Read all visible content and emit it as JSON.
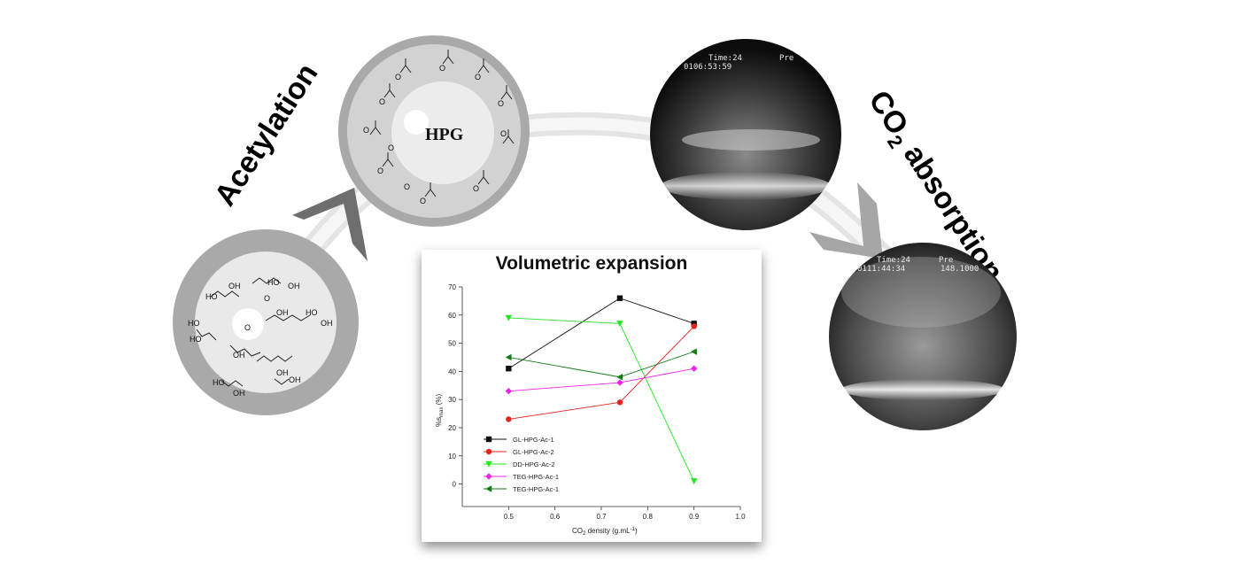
{
  "labels": {
    "acetylation": "Acetylation",
    "co2_absorption_prefix": "CO",
    "co2_absorption_sub": "2",
    "co2_absorption_suffix": " absorption",
    "hpg": "HPG"
  },
  "camera1": {
    "line1": "Time:24",
    "line2": "0106:53:59",
    "line3": "Pre"
  },
  "camera2": {
    "line1": "Time:24",
    "line2": "0111:44:34",
    "line3": "Pre",
    "line4": "148.1000"
  },
  "molecule_groups": [
    "OH",
    "HO",
    "O"
  ],
  "colors": {
    "arrow": "#6e6e6e",
    "ring": "#a9a9a9",
    "ring_inner": "#d3d3d3",
    "core": "#ececec"
  },
  "chart_data": {
    "type": "line",
    "title": "Volumetric expansion",
    "xlabel_prefix": "CO",
    "xlabel_sub": "2",
    "xlabel_suffix": " density (g.mL",
    "xlabel_sup": "-1",
    "xlabel_end": ")",
    "ylabel": "%s",
    "ylabel_sub": "max",
    "ylabel_suffix": " (%)",
    "xlim": [
      0.4,
      1.0
    ],
    "ylim": [
      -8,
      70
    ],
    "xticks": [
      "0.5",
      "0.6",
      "0.7",
      "0.8",
      "0.9",
      "1.0"
    ],
    "yticks": [
      "0",
      "10",
      "20",
      "30",
      "40",
      "50",
      "60",
      "70"
    ],
    "series": [
      {
        "name": "GL-HPG-Ac-1",
        "color": "#111111",
        "marker": "square",
        "x": [
          0.5,
          0.74,
          0.9
        ],
        "values": [
          41,
          66,
          57
        ]
      },
      {
        "name": "GL-HPG-Ac-2",
        "color": "#e8231d",
        "marker": "circle",
        "x": [
          0.5,
          0.74,
          0.9
        ],
        "values": [
          23,
          29,
          56
        ]
      },
      {
        "name": "DD-HPG-Ac-2",
        "color": "#22e81f",
        "marker": "tri-down",
        "x": [
          0.5,
          0.74,
          0.9
        ],
        "values": [
          59,
          57,
          1
        ]
      },
      {
        "name": "TEG-HPG-Ac-1",
        "color": "#ee22ee",
        "marker": "diamond",
        "x": [
          0.5,
          0.74,
          0.9
        ],
        "values": [
          33,
          36,
          41
        ]
      },
      {
        "name": "TEG-HPG-Ac-1",
        "color": "#127a17",
        "marker": "tri-left",
        "x": [
          0.5,
          0.74,
          0.9
        ],
        "values": [
          45,
          38,
          47
        ]
      }
    ]
  }
}
